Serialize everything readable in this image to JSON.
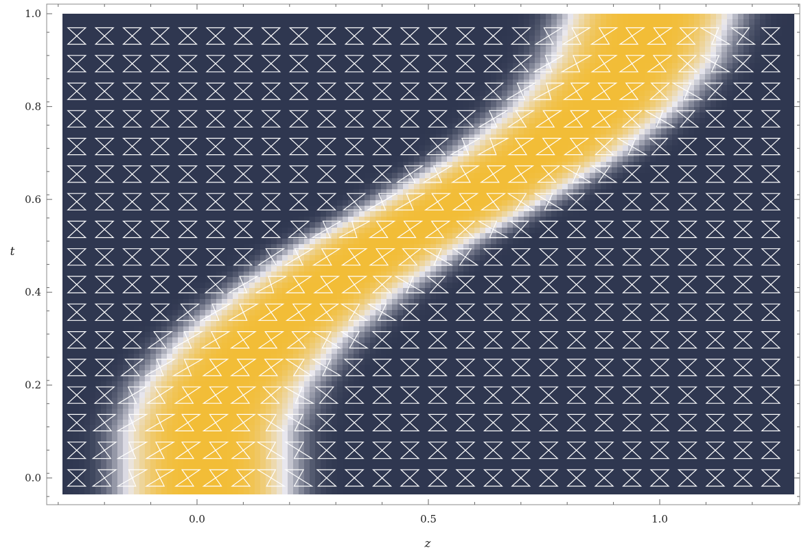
{
  "chart_data": {
    "type": "heatmap",
    "xlabel": "z",
    "ylabel": "t",
    "xlim": [
      -0.33,
      1.33
    ],
    "ylim": [
      -0.04,
      1.0
    ],
    "x_ticks": [
      0.0,
      0.5,
      1.0
    ],
    "x_tick_labels": [
      "0.0",
      "0.5",
      "1.0"
    ],
    "y_ticks": [
      0.0,
      0.2,
      0.4,
      0.6,
      0.8,
      1.0
    ],
    "y_tick_labels": [
      "0.0",
      "0.2",
      "0.4",
      "0.6",
      "0.8",
      "1.0"
    ],
    "grid": false,
    "colors": {
      "background": "#2f3750",
      "mid": "#eae9f0",
      "peak": "#f2bd37",
      "glyph": "#ffffff"
    },
    "field": {
      "description": "bright band centred at z = c(t), width proportional to w",
      "center_t": [
        0.0,
        0.1,
        0.2,
        0.3,
        0.4,
        0.5,
        0.6,
        0.7,
        0.8,
        0.9,
        1.0
      ],
      "center_z": [
        0.02,
        0.02,
        0.06,
        0.14,
        0.26,
        0.4,
        0.58,
        0.74,
        0.86,
        0.94,
        0.98
      ],
      "half_width": 0.19
    },
    "glyph_grid": {
      "columns": 26,
      "rows": 17,
      "z_start": -0.26,
      "z_step": 0.06,
      "t_start": 0.0,
      "t_step": 0.0595
    }
  }
}
